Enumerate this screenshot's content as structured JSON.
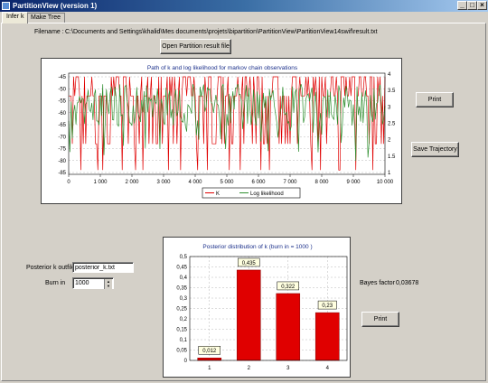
{
  "window": {
    "title": "PartitionView (version 1)",
    "minimize": "_",
    "maximize": "□",
    "close": "×"
  },
  "tabs": [
    {
      "label": "Infer k"
    },
    {
      "label": "Make Tree"
    }
  ],
  "file": {
    "label": "Filename :",
    "value": "C:\\Documents and Settings\\khalid\\Mes documents\\projets\\bipartition\\PartitionView\\PartitionView14swif\\result.txt",
    "open_button": "Open Partition result file"
  },
  "trace_chart": {
    "title": "Path of k and log likelihood for markov chain observations",
    "left_ticks": [
      "-45",
      "-50",
      "-55",
      "-60",
      "-65",
      "-70",
      "-75",
      "-80",
      "-85"
    ],
    "right_ticks": [
      "4",
      "3.5",
      "3",
      "2.5",
      "2",
      "1.5",
      "1"
    ],
    "x_ticks": [
      "0",
      "1 000",
      "2 000",
      "3 000",
      "4 000",
      "5 000",
      "6 000",
      "7 000",
      "8 000",
      "9 000",
      "10 000"
    ],
    "legend": [
      {
        "name": "K",
        "color": "#e00000"
      },
      {
        "name": "Log likelihood",
        "color": "#2f8f2f"
      }
    ]
  },
  "buttons": {
    "print_top": "Print",
    "save_trajectory": "Save Trajectory",
    "print_bottom": "Print"
  },
  "outfile": {
    "label": "Posterior k outfile",
    "value": "posterior_k.txt"
  },
  "burnin": {
    "label": "Burn in",
    "value": "1000"
  },
  "bayes": {
    "label": "Bayes factor",
    "value": "0,03678"
  },
  "chart_data": {
    "type": "bar",
    "title": "Posterior distribution of k (burn in = 1000 )",
    "categories": [
      "1",
      "2",
      "3",
      "4"
    ],
    "values": [
      0.012,
      0.435,
      0.322,
      0.23
    ],
    "value_labels": [
      "0,012",
      "0,435",
      "0,322",
      "0,23"
    ],
    "y_ticks": [
      "0",
      "0,05",
      "0,1",
      "0,15",
      "0,2",
      "0,25",
      "0,3",
      "0,35",
      "0,4",
      "0,45",
      "0,5"
    ],
    "ylim": [
      0,
      0.5
    ],
    "bar_color": "#e00000",
    "grid": true
  }
}
